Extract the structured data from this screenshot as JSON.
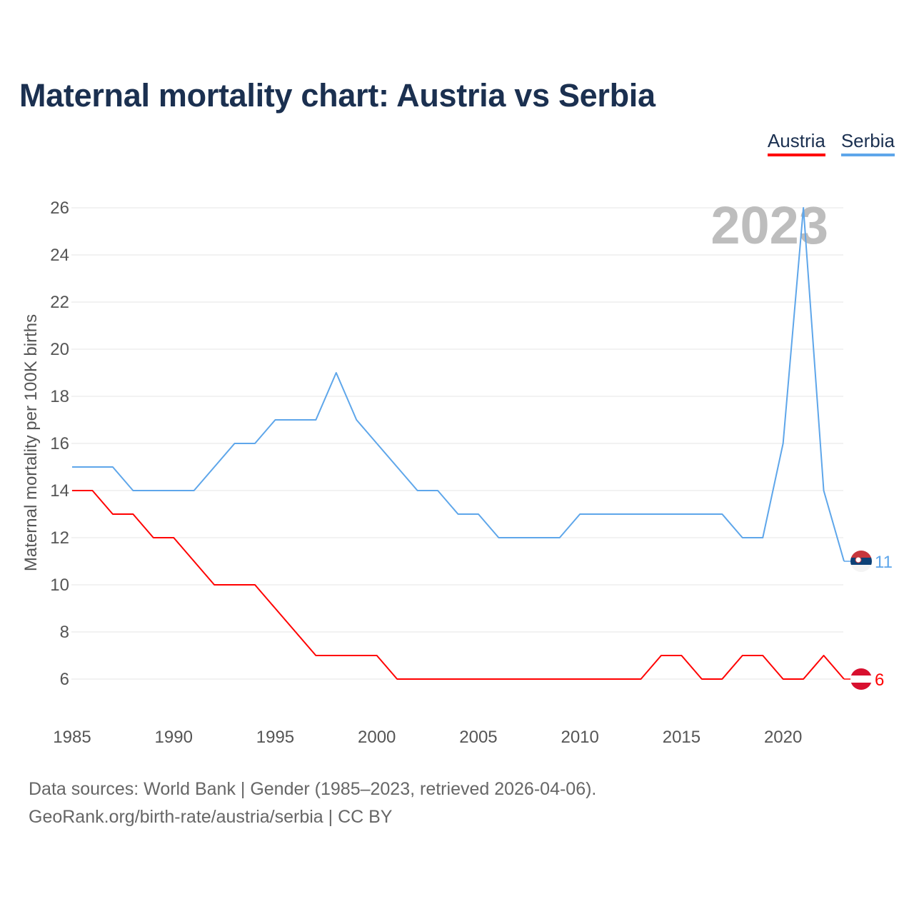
{
  "chart_data": {
    "type": "line",
    "title": "Maternal mortality chart: Austria vs Serbia",
    "xlabel": "",
    "ylabel": "Maternal mortality per 100K births",
    "xlim": [
      1985,
      2023
    ],
    "ylim": [
      6,
      26
    ],
    "x_ticks": [
      "1985",
      "1990",
      "1995",
      "2000",
      "2005",
      "2010",
      "2015",
      "2020"
    ],
    "y_ticks": [
      "6",
      "8",
      "10",
      "12",
      "14",
      "16",
      "18",
      "20",
      "22",
      "24",
      "26"
    ],
    "grid": true,
    "legend_placement": "top-right",
    "year_label": "2023",
    "x": [
      1985,
      1986,
      1987,
      1988,
      1989,
      1990,
      1991,
      1992,
      1993,
      1994,
      1995,
      1996,
      1997,
      1998,
      1999,
      2000,
      2001,
      2002,
      2003,
      2004,
      2005,
      2006,
      2007,
      2008,
      2009,
      2010,
      2011,
      2012,
      2013,
      2014,
      2015,
      2016,
      2017,
      2018,
      2019,
      2020,
      2021,
      2022,
      2023
    ],
    "series": [
      {
        "name": "Austria",
        "color": "#ff0000",
        "end_label": "6",
        "values": [
          14,
          14,
          13,
          13,
          12,
          12,
          11,
          10,
          10,
          10,
          9,
          8,
          7,
          7,
          7,
          7,
          6,
          6,
          6,
          6,
          6,
          6,
          6,
          6,
          6,
          6,
          6,
          6,
          6,
          7,
          7,
          6,
          6,
          7,
          7,
          6,
          6,
          7,
          6
        ]
      },
      {
        "name": "Serbia",
        "color": "#5ea6ea",
        "end_label": "11",
        "values": [
          15,
          15,
          15,
          14,
          14,
          14,
          14,
          15,
          16,
          16,
          17,
          17,
          17,
          19,
          17,
          16,
          15,
          14,
          14,
          13,
          13,
          12,
          12,
          12,
          12,
          13,
          13,
          13,
          13,
          13,
          13,
          13,
          13,
          12,
          12,
          16,
          26,
          14,
          11
        ]
      }
    ]
  },
  "footer": {
    "line1": "Data sources: World Bank | Gender (1985–2023, retrieved 2026-04-06).",
    "line2": "GeoRank.org/birth-rate/austria/serbia | CC BY"
  }
}
